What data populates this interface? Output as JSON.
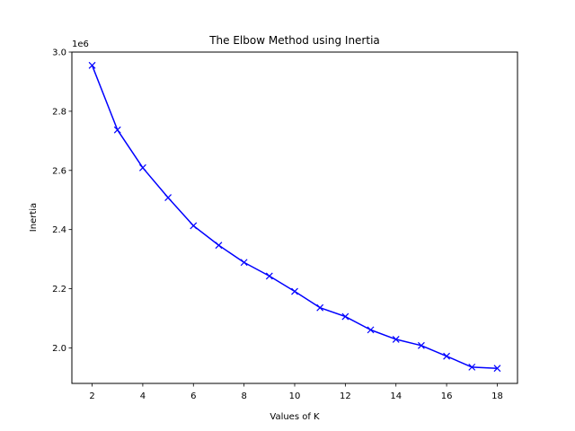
{
  "chart_data": {
    "type": "line",
    "title": "The Elbow Method using Inertia",
    "xlabel": "Values of K",
    "ylabel": "Inertia",
    "y_offset_label": "1e6",
    "y_scale_factor": 1000000,
    "xlim": [
      1.2,
      18.8
    ],
    "ylim": [
      1.88,
      3.0
    ],
    "xticks": [
      2,
      4,
      6,
      8,
      10,
      12,
      14,
      16,
      18
    ],
    "yticks": [
      2.0,
      2.2,
      2.4,
      2.6,
      2.8,
      3.0
    ],
    "grid": false,
    "legend": "none",
    "series": [
      {
        "color": "#0000ff",
        "marker": "x",
        "x": [
          2,
          3,
          4,
          5,
          6,
          7,
          8,
          9,
          10,
          11,
          12,
          13,
          14,
          15,
          16,
          17,
          18
        ],
        "y": [
          2.955,
          2.737,
          2.609,
          2.508,
          2.413,
          2.347,
          2.289,
          2.243,
          2.191,
          2.136,
          2.106,
          2.061,
          2.029,
          2.008,
          1.972,
          1.935,
          1.931
        ]
      }
    ]
  }
}
